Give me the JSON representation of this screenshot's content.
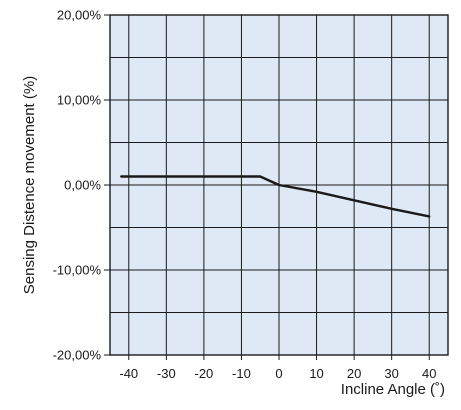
{
  "chart_data": {
    "type": "line",
    "title": "",
    "xlabel": "Incline Angle (˚)",
    "ylabel": "Sensing Distence movement (%)",
    "x_ticks": [
      "-40",
      "-30",
      "-20",
      "-10",
      "0",
      "10",
      "20",
      "30",
      "40"
    ],
    "y_ticks": [
      "20,00%",
      "10,00%",
      "0,00%",
      "-10,00%",
      "-20,00%"
    ],
    "xlim": [
      -45,
      45
    ],
    "ylim": [
      -20,
      20
    ],
    "grid": true,
    "colors": {
      "plot_background": "#dfe8f5",
      "grid": "#1a1a1a",
      "line": "#1a1a1a"
    },
    "series": [
      {
        "x": [
          -42,
          -35,
          -25,
          -15,
          -5,
          0,
          10,
          20,
          30,
          40
        ],
        "y": [
          1.0,
          1.0,
          1.0,
          1.0,
          1.0,
          0.0,
          -0.8,
          -1.8,
          -2.8,
          -3.7
        ]
      }
    ]
  }
}
